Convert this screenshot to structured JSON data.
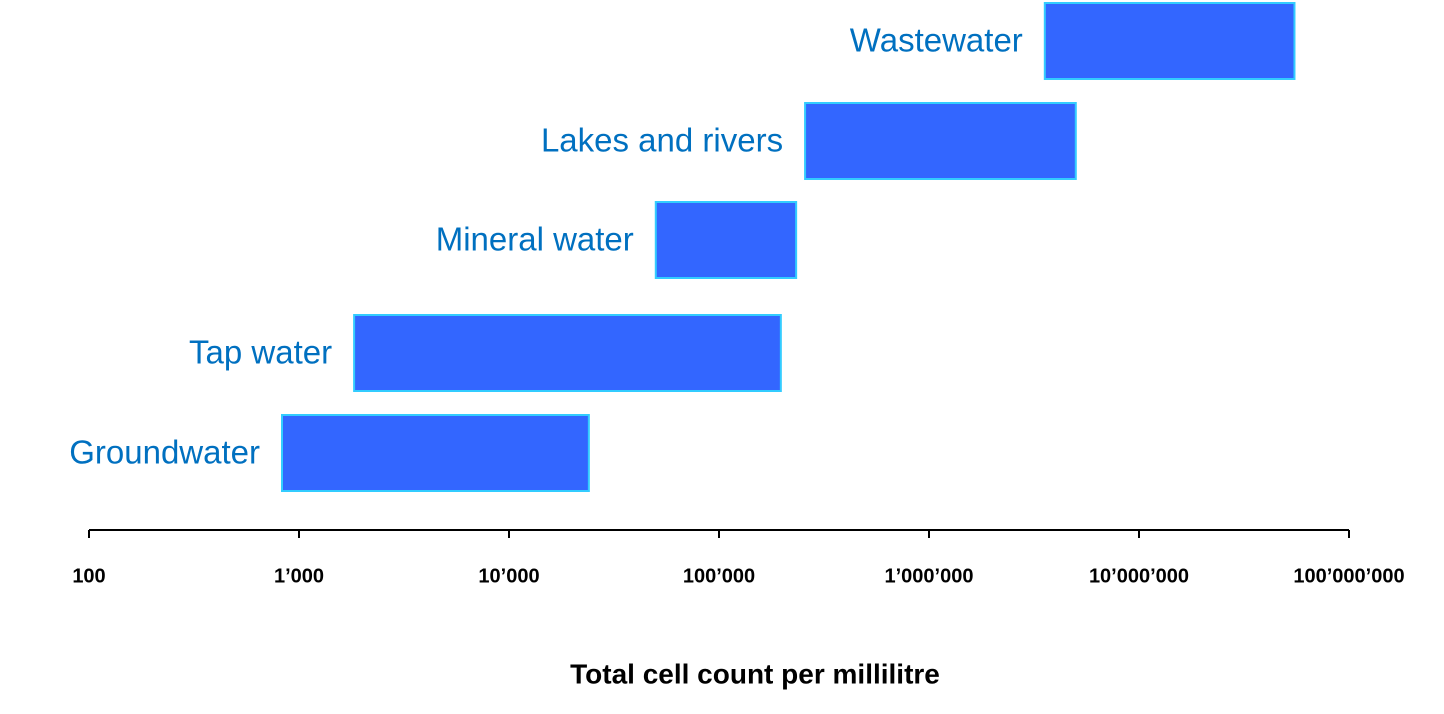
{
  "chart_data": {
    "type": "floating-bar",
    "categories": [
      "Groundwater",
      "Tap water",
      "Mineral water",
      "Lakes and rivers",
      "Wastewater"
    ],
    "values": [
      [
        830,
        24000
      ],
      [
        1830,
        197000
      ],
      [
        50000,
        233000
      ],
      [
        257000,
        5000000
      ],
      [
        3560000,
        55000000
      ]
    ],
    "color": "#3366ff",
    "edge_color": "#33ccff",
    "label_color": "#0070c0",
    "x_label": "Total cell count per millilitre",
    "xscale": "log",
    "xlim": [
      100,
      100000000
    ],
    "xticks": [
      100,
      {
        "value": 1000,
        "label": "1’000"
      },
      {
        "value": 10000,
        "label": "10’000"
      },
      {
        "value": 100000,
        "label": "100’000"
      },
      {
        "value": 1000000,
        "label": "1’000’000"
      },
      {
        "value": 10000000,
        "label": "10’000’000"
      },
      {
        "value": 100000000,
        "label": "100’000’000"
      }
    ]
  }
}
